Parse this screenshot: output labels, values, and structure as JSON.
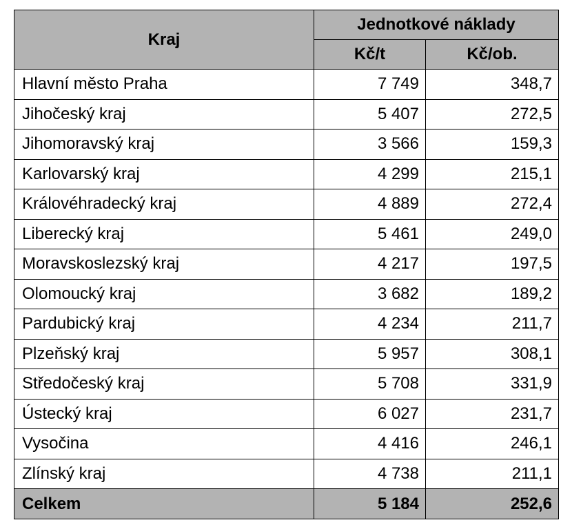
{
  "table": {
    "header": {
      "region": "Kraj",
      "group": "Jednotkové náklady",
      "unit_per_ton": "Kč/t",
      "unit_per_person": "Kč/ob."
    },
    "rows": [
      {
        "region": "Hlavní město Praha",
        "per_ton": "7 749",
        "per_person": "348,7"
      },
      {
        "region": "Jihočeský kraj",
        "per_ton": "5 407",
        "per_person": "272,5"
      },
      {
        "region": "Jihomoravský kraj",
        "per_ton": "3 566",
        "per_person": "159,3"
      },
      {
        "region": "Karlovarský kraj",
        "per_ton": "4 299",
        "per_person": "215,1"
      },
      {
        "region": "Královéhradecký kraj",
        "per_ton": "4 889",
        "per_person": "272,4"
      },
      {
        "region": "Liberecký kraj",
        "per_ton": "5 461",
        "per_person": "249,0"
      },
      {
        "region": "Moravskoslezský kraj",
        "per_ton": "4 217",
        "per_person": "197,5"
      },
      {
        "region": "Olomoucký kraj",
        "per_ton": "3 682",
        "per_person": "189,2"
      },
      {
        "region": "Pardubický kraj",
        "per_ton": "4 234",
        "per_person": "211,7"
      },
      {
        "region": "Plzeňský kraj",
        "per_ton": "5 957",
        "per_person": "308,1"
      },
      {
        "region": "Středočeský kraj",
        "per_ton": "5 708",
        "per_person": "331,9"
      },
      {
        "region": "Ústecký kraj",
        "per_ton": "6 027",
        "per_person": "231,7"
      },
      {
        "region": "Vysočina",
        "per_ton": "4 416",
        "per_person": "246,1"
      },
      {
        "region": "Zlínský kraj",
        "per_ton": "4 738",
        "per_person": "211,1"
      }
    ],
    "total": {
      "region": "Celkem",
      "per_ton": "5 184",
      "per_person": "252,6"
    }
  }
}
